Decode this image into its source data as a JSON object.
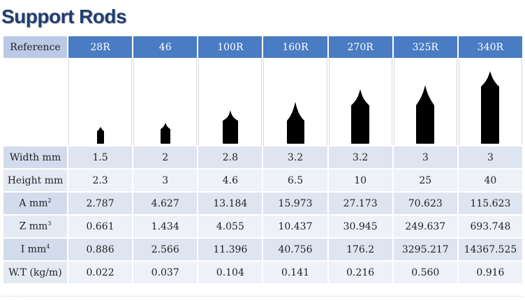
{
  "title": "Support Rods",
  "header": {
    "label": "Reference",
    "columns": [
      "28R",
      "46",
      "100R",
      "160R",
      "270R",
      "325R",
      "340R"
    ]
  },
  "rows": [
    {
      "label": "Width mm",
      "sup": "",
      "values": [
        "1.5",
        "2",
        "2.8",
        "3.2",
        "3.2",
        "3",
        "3"
      ]
    },
    {
      "label": "Height mm",
      "sup": "",
      "values": [
        "2.3",
        "3",
        "4.6",
        "6.5",
        "10",
        "25",
        "40"
      ]
    },
    {
      "label": "A mm",
      "sup": "2",
      "values": [
        "2.787",
        "4.627",
        "13.184",
        "15.973",
        "27.173",
        "70.623",
        "115.623"
      ]
    },
    {
      "label": "Z mm",
      "sup": "3",
      "values": [
        "0.661",
        "1.434",
        "4.055",
        "10.437",
        "30.945",
        "249.637",
        "693.748"
      ]
    },
    {
      "label": "I mm",
      "sup": "4",
      "values": [
        "0.886",
        "2.566",
        "11.396",
        "40.756",
        "176.2",
        "3295.217",
        "14367.525"
      ]
    },
    {
      "label": "W.T (kg/m)",
      "sup": "",
      "values": [
        "0.022",
        "0.037",
        "0.104",
        "0.141",
        "0.216",
        "0.560",
        "0.916"
      ]
    }
  ],
  "colors": {
    "title": "#1f3f72",
    "header_bg": "#4a7cc3",
    "reference_bg": "#b9c9e6",
    "row_bg": "#dfe5f0",
    "profile": "#000000"
  }
}
